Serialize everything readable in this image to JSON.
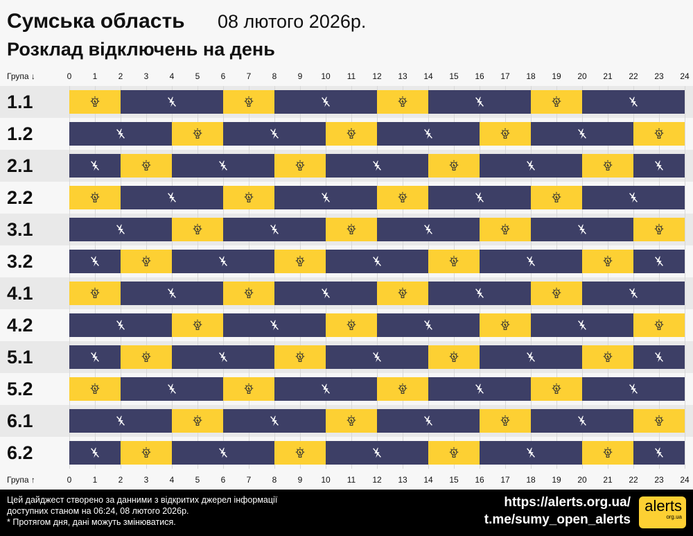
{
  "header": {
    "region": "Сумська область",
    "date": "08 лютого 2026р.",
    "subtitle": "Розклад відключень на день"
  },
  "axis": {
    "top_label": "Група ↓",
    "bottom_label": "Група ↑",
    "hours": [
      "0",
      "1",
      "2",
      "3",
      "4",
      "5",
      "6",
      "7",
      "8",
      "9",
      "10",
      "11",
      "12",
      "13",
      "14",
      "15",
      "16",
      "17",
      "18",
      "19",
      "20",
      "21",
      "22",
      "23",
      "24"
    ]
  },
  "colors": {
    "power_on": "#fdd033",
    "power_off": "#3d3f66"
  },
  "legend_icons": {
    "on": "lightbulb-icon",
    "off": "no-power-icon"
  },
  "groups": [
    {
      "name": "1.1",
      "segments": [
        [
          0,
          2,
          "on"
        ],
        [
          2,
          6,
          "off"
        ],
        [
          6,
          8,
          "on"
        ],
        [
          8,
          12,
          "off"
        ],
        [
          12,
          14,
          "on"
        ],
        [
          14,
          18,
          "off"
        ],
        [
          18,
          20,
          "on"
        ],
        [
          20,
          24,
          "off"
        ]
      ]
    },
    {
      "name": "1.2",
      "segments": [
        [
          0,
          4,
          "off"
        ],
        [
          4,
          6,
          "on"
        ],
        [
          6,
          10,
          "off"
        ],
        [
          10,
          12,
          "on"
        ],
        [
          12,
          16,
          "off"
        ],
        [
          16,
          18,
          "on"
        ],
        [
          18,
          22,
          "off"
        ],
        [
          22,
          24,
          "on"
        ]
      ]
    },
    {
      "name": "2.1",
      "segments": [
        [
          0,
          2,
          "off"
        ],
        [
          2,
          4,
          "on"
        ],
        [
          4,
          8,
          "off"
        ],
        [
          8,
          10,
          "on"
        ],
        [
          10,
          14,
          "off"
        ],
        [
          14,
          16,
          "on"
        ],
        [
          16,
          20,
          "off"
        ],
        [
          20,
          22,
          "on"
        ],
        [
          22,
          24,
          "off"
        ]
      ]
    },
    {
      "name": "2.2",
      "segments": [
        [
          0,
          2,
          "on"
        ],
        [
          2,
          6,
          "off"
        ],
        [
          6,
          8,
          "on"
        ],
        [
          8,
          12,
          "off"
        ],
        [
          12,
          14,
          "on"
        ],
        [
          14,
          18,
          "off"
        ],
        [
          18,
          20,
          "on"
        ],
        [
          20,
          24,
          "off"
        ]
      ]
    },
    {
      "name": "3.1",
      "segments": [
        [
          0,
          4,
          "off"
        ],
        [
          4,
          6,
          "on"
        ],
        [
          6,
          10,
          "off"
        ],
        [
          10,
          12,
          "on"
        ],
        [
          12,
          16,
          "off"
        ],
        [
          16,
          18,
          "on"
        ],
        [
          18,
          22,
          "off"
        ],
        [
          22,
          24,
          "on"
        ]
      ]
    },
    {
      "name": "3.2",
      "segments": [
        [
          0,
          2,
          "off"
        ],
        [
          2,
          4,
          "on"
        ],
        [
          4,
          8,
          "off"
        ],
        [
          8,
          10,
          "on"
        ],
        [
          10,
          14,
          "off"
        ],
        [
          14,
          16,
          "on"
        ],
        [
          16,
          20,
          "off"
        ],
        [
          20,
          22,
          "on"
        ],
        [
          22,
          24,
          "off"
        ]
      ]
    },
    {
      "name": "4.1",
      "segments": [
        [
          0,
          2,
          "on"
        ],
        [
          2,
          6,
          "off"
        ],
        [
          6,
          8,
          "on"
        ],
        [
          8,
          12,
          "off"
        ],
        [
          12,
          14,
          "on"
        ],
        [
          14,
          18,
          "off"
        ],
        [
          18,
          20,
          "on"
        ],
        [
          20,
          24,
          "off"
        ]
      ]
    },
    {
      "name": "4.2",
      "segments": [
        [
          0,
          4,
          "off"
        ],
        [
          4,
          6,
          "on"
        ],
        [
          6,
          10,
          "off"
        ],
        [
          10,
          12,
          "on"
        ],
        [
          12,
          16,
          "off"
        ],
        [
          16,
          18,
          "on"
        ],
        [
          18,
          22,
          "off"
        ],
        [
          22,
          24,
          "on"
        ]
      ]
    },
    {
      "name": "5.1",
      "segments": [
        [
          0,
          2,
          "off"
        ],
        [
          2,
          4,
          "on"
        ],
        [
          4,
          8,
          "off"
        ],
        [
          8,
          10,
          "on"
        ],
        [
          10,
          14,
          "off"
        ],
        [
          14,
          16,
          "on"
        ],
        [
          16,
          20,
          "off"
        ],
        [
          20,
          22,
          "on"
        ],
        [
          22,
          24,
          "off"
        ]
      ]
    },
    {
      "name": "5.2",
      "segments": [
        [
          0,
          2,
          "on"
        ],
        [
          2,
          6,
          "off"
        ],
        [
          6,
          8,
          "on"
        ],
        [
          8,
          12,
          "off"
        ],
        [
          12,
          14,
          "on"
        ],
        [
          14,
          18,
          "off"
        ],
        [
          18,
          20,
          "on"
        ],
        [
          20,
          24,
          "off"
        ]
      ]
    },
    {
      "name": "6.1",
      "segments": [
        [
          0,
          4,
          "off"
        ],
        [
          4,
          6,
          "on"
        ],
        [
          6,
          10,
          "off"
        ],
        [
          10,
          12,
          "on"
        ],
        [
          12,
          16,
          "off"
        ],
        [
          16,
          18,
          "on"
        ],
        [
          18,
          22,
          "off"
        ],
        [
          22,
          24,
          "on"
        ]
      ]
    },
    {
      "name": "6.2",
      "segments": [
        [
          0,
          2,
          "off"
        ],
        [
          2,
          4,
          "on"
        ],
        [
          4,
          8,
          "off"
        ],
        [
          8,
          10,
          "on"
        ],
        [
          10,
          14,
          "off"
        ],
        [
          14,
          16,
          "on"
        ],
        [
          16,
          20,
          "off"
        ],
        [
          20,
          22,
          "on"
        ],
        [
          22,
          24,
          "off"
        ]
      ]
    }
  ],
  "footer": {
    "line1": "Цей дайджест створено за данними з відкритих джерел інформації",
    "line2": "доступних станом на 06:24, 08 лютого 2026р.",
    "line3": "* Протягом дня, дані можуть змінюватися.",
    "url": "https://alerts.org.ua/",
    "telegram": "t.me/sumy_open_alerts",
    "logo_main": "alerts",
    "logo_sub": "org.ua"
  }
}
